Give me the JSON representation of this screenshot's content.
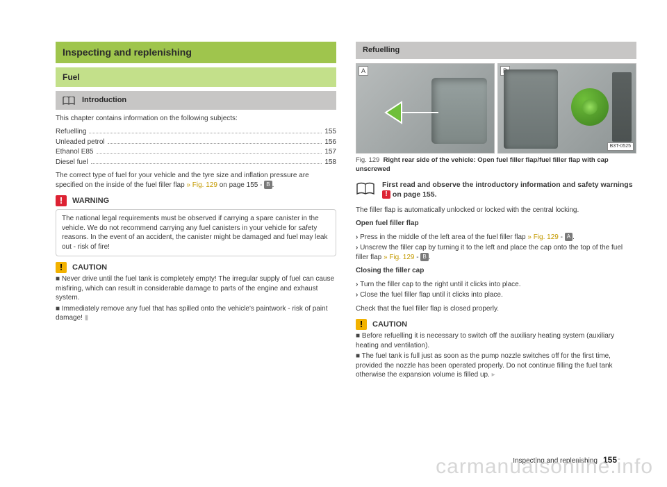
{
  "left": {
    "heading": "Inspecting and replenishing",
    "subheading": "Fuel",
    "introLabel": "Introduction",
    "chapterLine": "This chapter contains information on the following subjects:",
    "toc": [
      {
        "label": "Refuelling",
        "page": "155"
      },
      {
        "label": "Unleaded petrol",
        "page": "156"
      },
      {
        "label": "Ethanol E85",
        "page": "157"
      },
      {
        "label": "Diesel fuel",
        "page": "158"
      }
    ],
    "fuelTypeNote_pre": "The correct type of fuel for your vehicle and the tyre size and inflation pressure are specified on the inside of the fuel filler flap ",
    "fuelTypeNote_link": "» Fig. 129",
    "fuelTypeNote_post": " on page 155 - ",
    "fuelTypeNote_badge": "B",
    "warningLabel": "WARNING",
    "warningText": "The national legal requirements must be observed if carrying a spare canister in the vehicle. We do not recommend carrying any fuel canisters in your vehicle for safety reasons. In the event of an accident, the canister might be damaged and fuel may leak out - risk of fire!",
    "cautionLabel": "CAUTION",
    "cautionItem1": "Never drive until the fuel tank is completely empty! The irregular supply of fuel can cause misfiring, which can result in considerable damage to parts of the engine and exhaust system.",
    "cautionItem2": "Immediately remove any fuel that has spilled onto the vehicle's paintwork - risk of paint damage!"
  },
  "right": {
    "heading": "Refuelling",
    "figNum": "Fig. 129",
    "figCap": "Right rear side of the vehicle: Open fuel filler flap/fuel filler flap with cap unscrewed",
    "figCode": "B3T-0525",
    "readNote_pre": "First read and observe the introductory information and safety warnings ",
    "readNote_post": " on page 155.",
    "autoUnlock": "The filler flap is automatically unlocked or locked with the central locking.",
    "openHead": "Open fuel filler flap",
    "open1_pre": "Press in the middle of the left area of the fuel filler flap ",
    "open1_link": "» Fig. 129",
    "open1_post": " - ",
    "open1_badge": "A",
    "open2_pre": "Unscrew the filler cap by turning it to the left and place the cap onto the top of the fuel filler flap ",
    "open2_link": "» Fig. 129",
    "open2_post": " - ",
    "open2_badge": "B",
    "closeHead": "Closing the filler cap",
    "close1": "Turn the filler cap to the right until it clicks into place.",
    "close2": "Close the fuel filler flap until it clicks into place.",
    "checkLine": "Check that the fuel filler flap is closed properly.",
    "cautionLabel": "CAUTION",
    "cItem1": "Before refuelling it is necessary to switch off the auxiliary heating system (auxiliary heating and ventilation).",
    "cItem2": "The fuel tank is full just as soon as the pump nozzle switches off for the first time, provided the nozzle has been operated properly. Do not continue filling the fuel tank otherwise the expansion volume is filled up."
  },
  "footer": {
    "section": "Inspecting and replenishing",
    "page": "155"
  },
  "watermark": "carmanualsonline.info",
  "colors": {
    "greenDark": "#9fc54d",
    "greenLight": "#c3e08a",
    "grey": "#c7c6c5",
    "link": "#c49a00",
    "warnRed": "#d23",
    "cautYellow": "#f2b200"
  }
}
